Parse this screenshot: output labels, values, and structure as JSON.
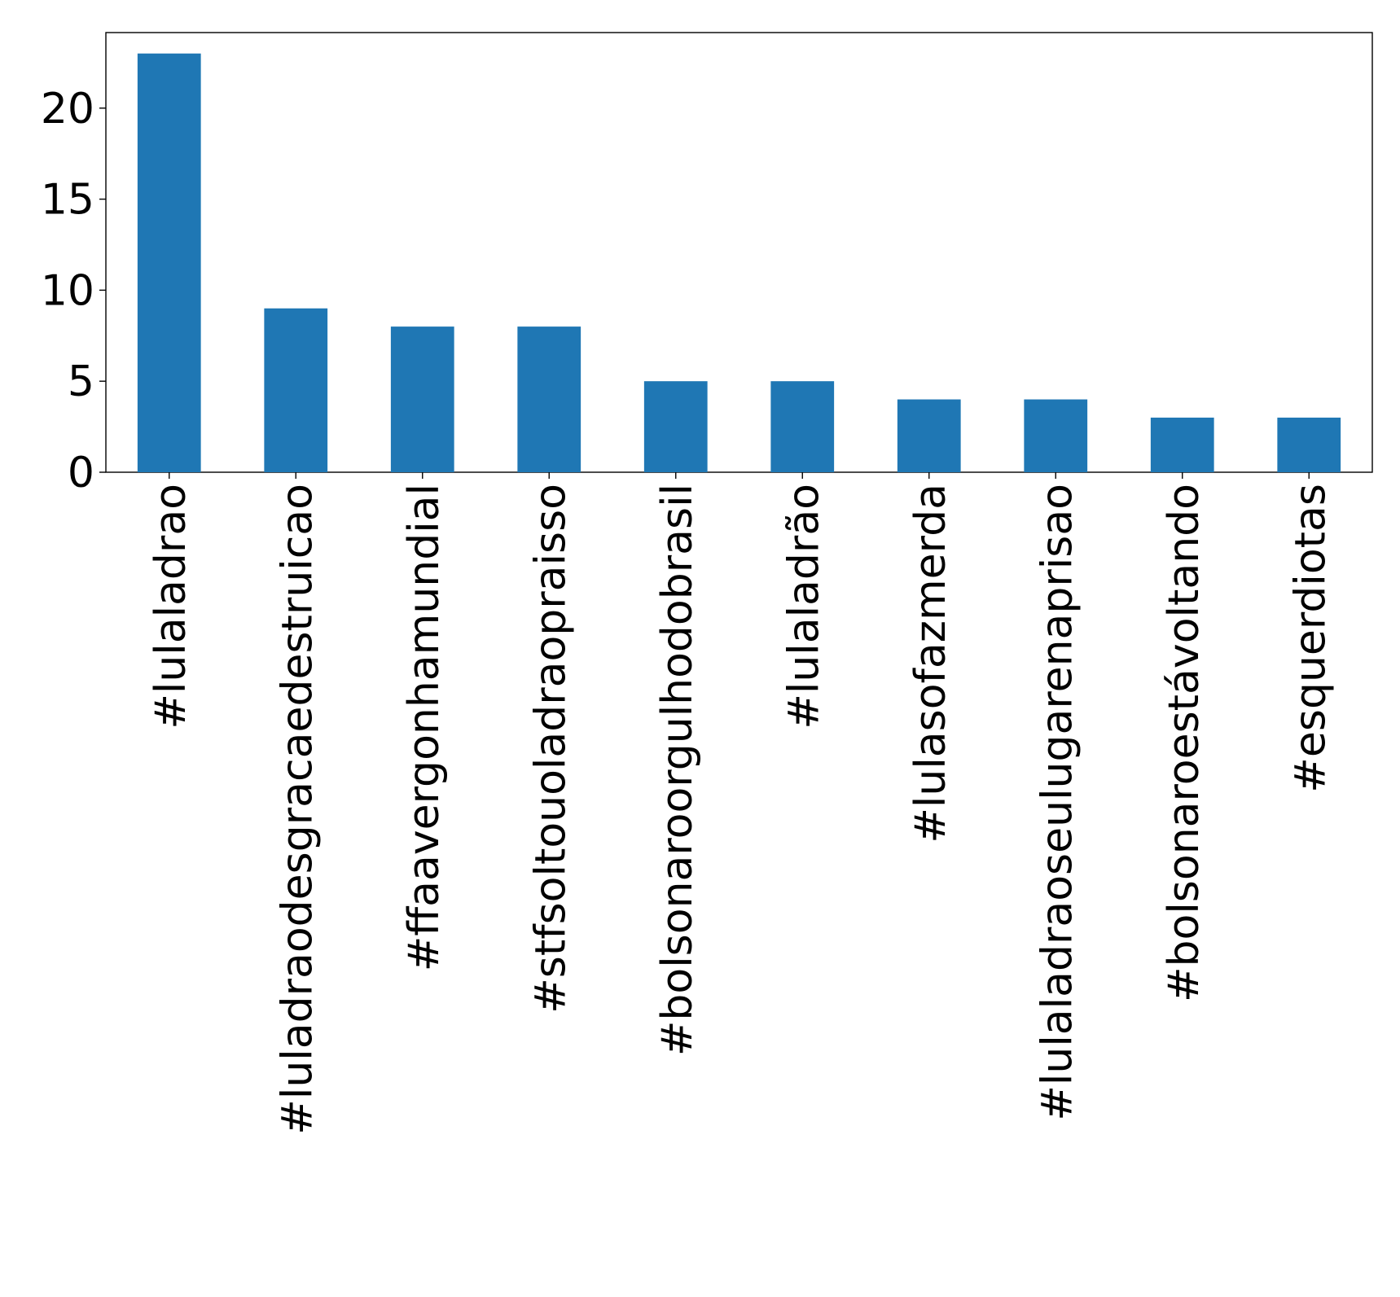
{
  "chart_data": {
    "type": "bar",
    "title": "",
    "xlabel": "",
    "ylabel": "",
    "categories": [
      "#lulaladrao",
      "#luladraodesgracaedestruicao",
      "#ffaavergonhamundial",
      "#stfsoltouoladraopraisso",
      "#bolsonaroorgulhodobrasil",
      "#lulaladrão",
      "#lulasofazmerda",
      "#lulaladraoseulugarenaprisao",
      "#bolsonaroestávoltando",
      "#esquerdiotas"
    ],
    "values": [
      23,
      9,
      8,
      8,
      5,
      5,
      4,
      4,
      3,
      3
    ],
    "ylim": [
      0,
      24.15
    ],
    "yticks": [
      0,
      5,
      10,
      15,
      20
    ],
    "ytick_labels": [
      "0",
      "5",
      "10",
      "15",
      "20"
    ],
    "grid": false,
    "bar_color": "#1f77b4"
  }
}
